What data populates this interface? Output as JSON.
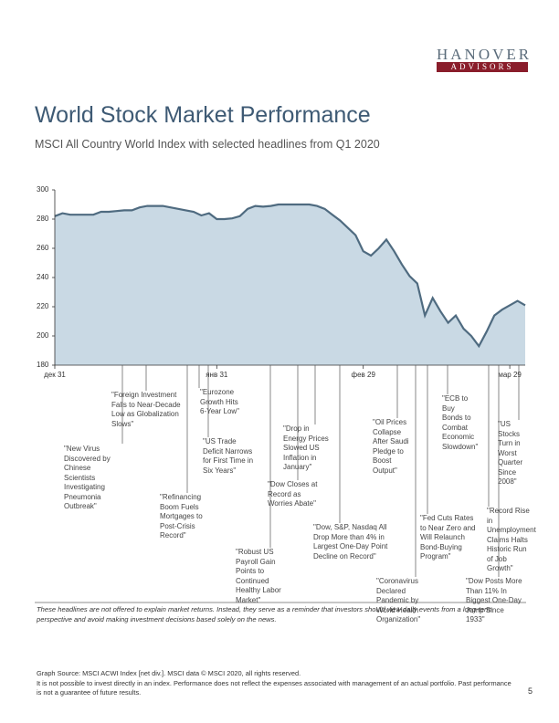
{
  "header": {
    "logo_top": "HANOVER",
    "logo_bottom": "ADVISORS",
    "title": "World Stock Market Performance",
    "subtitle": "MSCI All Country World Index with selected headlines from Q1 2020"
  },
  "chart_data": {
    "type": "area",
    "color": "#c9d9e4",
    "line_color": "#4f6b80",
    "categories": [
      "дек 31",
      null,
      null,
      null,
      null,
      null,
      null,
      null,
      null,
      null,
      null,
      null,
      null,
      null,
      null,
      null,
      null,
      null,
      null,
      null,
      null,
      "янв 31",
      null,
      null,
      null,
      null,
      null,
      null,
      null,
      null,
      null,
      null,
      null,
      null,
      null,
      null,
      null,
      null,
      null,
      null,
      "фев 29",
      null,
      null,
      null,
      null,
      null,
      null,
      null,
      null,
      null,
      null,
      null,
      null,
      null,
      null,
      null,
      null,
      null,
      null,
      "мар 29",
      null,
      null
    ],
    "values": [
      282,
      284,
      283,
      283,
      283,
      283,
      285,
      285,
      285.5,
      286,
      286,
      288,
      289,
      289,
      289,
      288,
      287,
      286,
      285,
      282.5,
      284,
      280,
      280,
      280.5,
      282,
      287,
      289,
      288.5,
      289,
      290,
      290,
      290,
      290,
      290,
      289,
      287,
      283,
      279,
      274,
      269,
      258,
      255,
      260,
      266,
      258,
      249,
      241,
      236,
      214,
      226,
      217,
      209,
      214,
      205,
      200,
      193,
      203,
      214,
      218,
      221,
      224,
      221
    ],
    "ylim": [
      180,
      300
    ],
    "yticks": [
      180,
      200,
      220,
      240,
      260,
      280,
      300
    ]
  },
  "annotations": [
    "\"Foreign Investment Falls to Near-Decade Low as Globalization Slows\"",
    "\"New Virus Discovered by Chinese Scientists Investigating Pneumonia Outbreak\"",
    "\"Eurozone Growth Hits 6-Year Low\"",
    "\"US Trade Deficit Narrows for First Time in Six Years\"",
    "\"Refinancing Boom Fuels Mortgages to Post-Crisis Record\"",
    "\"Robust US Payroll Gain Points to Continued Healthy Labor Market\"",
    "\"Drop in Energy Prices Slowed US Inflation in January\"",
    "\"Dow Closes at Record as Worries Abate\"",
    "\"Dow, S&P, Nasdaq All Drop More than 4% in Largest One-Day Point Decline on Record\"",
    "\"Oil Prices Collapse After Saudi Pledge to Boost Output\"",
    "\"Coronavirus Declared Pandemic by World Health Organization\"",
    "\"Fed Cuts Rates to Near Zero and Will Relaunch Bond-Buying Program\"",
    "\"ECB to Buy Bonds to Combat Economic Slowdown\"",
    "\"US Stocks Turn in Worst Quarter Since 2008\"",
    "\"Record Rise in Unemployment Claims Halts Historic Run of Job Growth\"",
    "\"Dow Posts More Than 11% In Biggest One-Day Jump Since 1933\""
  ],
  "footer": {
    "note": "These headlines are not offered to explain market returns. Instead, they serve as a reminder that investors should view daily events from a long-term perspective and avoid making investment decisions based solely on the news.",
    "source": "Graph Source: MSCI ACWI Index [net div.]. MSCI data © MSCI 2020, all rights reserved.",
    "disclaimer": "It is not possible to invest directly in an index. Performance does not reflect the expenses associated with management of an actual portfolio. Past performance is not a guarantee of future results.",
    "page": "5"
  }
}
